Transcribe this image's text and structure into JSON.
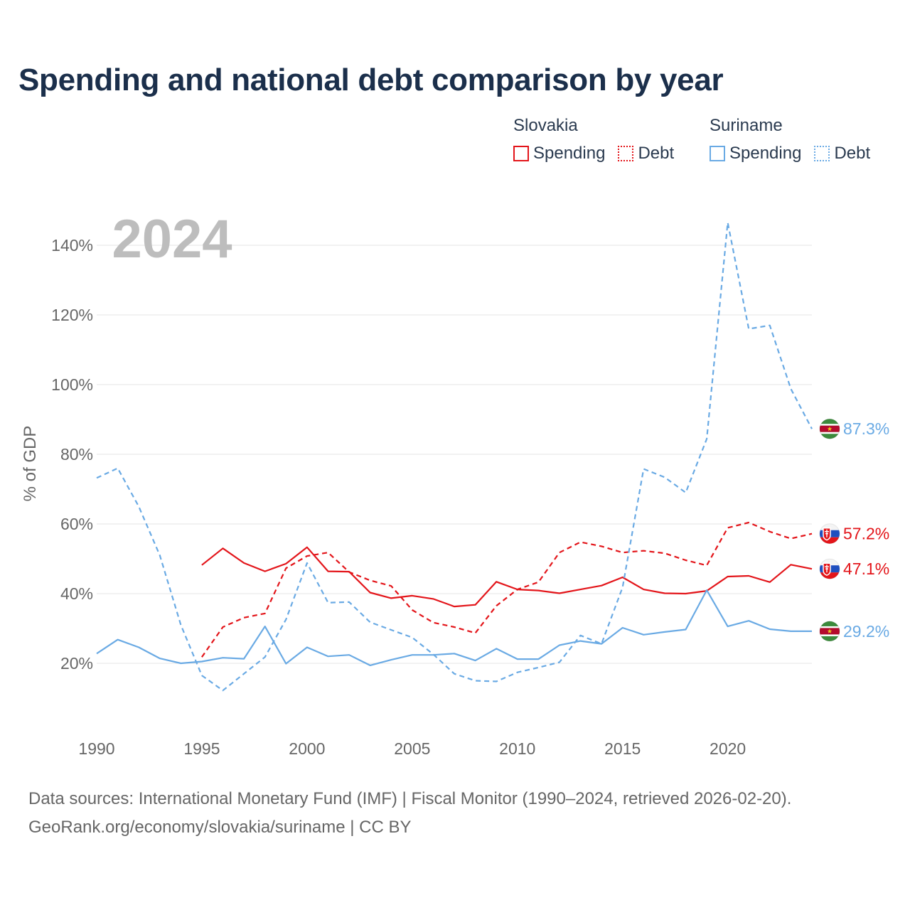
{
  "title": "Spending and national debt comparison by year",
  "legend": {
    "groups": [
      {
        "country": "Slovakia",
        "spending": "Spending",
        "debt": "Debt",
        "color": "#e3151a"
      },
      {
        "country": "Suriname",
        "spending": "Spending",
        "debt": "Debt",
        "color": "#6aaae4"
      }
    ]
  },
  "footer": {
    "sources": "Data sources: International Monetary Fund (IMF) | Fiscal Monitor (1990–2024, retrieved 2026-02-20).",
    "link": "GeoRank.org/economy/slovakia/suriname | CC BY"
  },
  "chart_data": {
    "type": "line",
    "year_label": "2024",
    "ylabel": "% of GDP",
    "xlim": [
      1990,
      2024
    ],
    "ylim": [
      0,
      150
    ],
    "x_ticks": [
      1990,
      1995,
      2000,
      2005,
      2010,
      2015,
      2020
    ],
    "y_ticks": [
      20,
      40,
      60,
      80,
      100,
      120,
      140
    ],
    "y_tick_labels": [
      "20%",
      "40%",
      "60%",
      "80%",
      "100%",
      "120%",
      "140%"
    ],
    "grid": true,
    "series": [
      {
        "name": "Slovakia Debt",
        "country": "Slovakia",
        "metric": "Debt",
        "style": "dashed",
        "color": "#e3151a",
        "flag": "slovakia",
        "end_label": "57.2%",
        "points": [
          [
            1995,
            21.8
          ],
          [
            1996,
            30.4
          ],
          [
            1997,
            33.1
          ],
          [
            1998,
            34.3
          ],
          [
            1999,
            47.3
          ],
          [
            2000,
            50.8
          ],
          [
            2001,
            51.8
          ],
          [
            2002,
            46.2
          ],
          [
            2003,
            43.8
          ],
          [
            2004,
            42.2
          ],
          [
            2005,
            35.3
          ],
          [
            2006,
            31.7
          ],
          [
            2007,
            30.4
          ],
          [
            2008,
            28.7
          ],
          [
            2009,
            36.5
          ],
          [
            2010,
            41.2
          ],
          [
            2011,
            43.3
          ],
          [
            2012,
            51.8
          ],
          [
            2013,
            54.8
          ],
          [
            2014,
            53.6
          ],
          [
            2015,
            51.8
          ],
          [
            2016,
            52.3
          ],
          [
            2017,
            51.6
          ],
          [
            2018,
            49.6
          ],
          [
            2019,
            48.1
          ],
          [
            2020,
            58.9
          ],
          [
            2021,
            60.4
          ],
          [
            2022,
            57.8
          ],
          [
            2023,
            55.8
          ],
          [
            2024,
            57.2
          ]
        ]
      },
      {
        "name": "Slovakia Spending",
        "country": "Slovakia",
        "metric": "Spending",
        "style": "solid",
        "color": "#e3151a",
        "flag": "slovakia",
        "end_label": "47.1%",
        "points": [
          [
            1995,
            48.2
          ],
          [
            1996,
            53.0
          ],
          [
            1997,
            48.8
          ],
          [
            1998,
            46.4
          ],
          [
            1999,
            48.6
          ],
          [
            2000,
            53.3
          ],
          [
            2001,
            46.4
          ],
          [
            2002,
            46.3
          ],
          [
            2003,
            40.3
          ],
          [
            2004,
            38.7
          ],
          [
            2005,
            39.4
          ],
          [
            2006,
            38.5
          ],
          [
            2007,
            36.3
          ],
          [
            2008,
            36.8
          ],
          [
            2009,
            43.4
          ],
          [
            2010,
            41.2
          ],
          [
            2011,
            40.9
          ],
          [
            2012,
            40.1
          ],
          [
            2013,
            41.2
          ],
          [
            2014,
            42.3
          ],
          [
            2015,
            44.7
          ],
          [
            2016,
            41.2
          ],
          [
            2017,
            40.1
          ],
          [
            2018,
            40.0
          ],
          [
            2019,
            40.8
          ],
          [
            2020,
            44.9
          ],
          [
            2021,
            45.1
          ],
          [
            2022,
            43.3
          ],
          [
            2023,
            48.3
          ],
          [
            2024,
            47.1
          ]
        ]
      },
      {
        "name": "Suriname Debt",
        "country": "Suriname",
        "metric": "Debt",
        "style": "dashed",
        "color": "#6aaae4",
        "flag": "suriname",
        "end_label": "87.3%",
        "points": [
          [
            1990,
            73.2
          ],
          [
            1991,
            76.0
          ],
          [
            1992,
            65.0
          ],
          [
            1993,
            51.0
          ],
          [
            1994,
            31.0
          ],
          [
            1995,
            16.5
          ],
          [
            1996,
            12.2
          ],
          [
            1997,
            17.0
          ],
          [
            1998,
            21.8
          ],
          [
            1999,
            32.6
          ],
          [
            2000,
            48.8
          ],
          [
            2001,
            37.4
          ],
          [
            2002,
            37.6
          ],
          [
            2003,
            31.8
          ],
          [
            2004,
            29.6
          ],
          [
            2005,
            27.4
          ],
          [
            2006,
            22.6
          ],
          [
            2007,
            17.0
          ],
          [
            2008,
            15.0
          ],
          [
            2009,
            14.8
          ],
          [
            2010,
            17.4
          ],
          [
            2011,
            18.8
          ],
          [
            2012,
            20.3
          ],
          [
            2013,
            28.0
          ],
          [
            2014,
            25.6
          ],
          [
            2015,
            41.8
          ],
          [
            2016,
            75.8
          ],
          [
            2017,
            73.4
          ],
          [
            2018,
            69.0
          ],
          [
            2019,
            84.4
          ],
          [
            2020,
            146.5
          ],
          [
            2021,
            116.0
          ],
          [
            2022,
            117.0
          ],
          [
            2023,
            98.8
          ],
          [
            2024,
            87.3
          ]
        ]
      },
      {
        "name": "Suriname Spending",
        "country": "Suriname",
        "metric": "Spending",
        "style": "solid",
        "color": "#6aaae4",
        "flag": "suriname",
        "end_label": "29.2%",
        "points": [
          [
            1990,
            22.8
          ],
          [
            1991,
            26.8
          ],
          [
            1992,
            24.6
          ],
          [
            1993,
            21.4
          ],
          [
            1994,
            20.0
          ],
          [
            1995,
            20.5
          ],
          [
            1996,
            21.6
          ],
          [
            1997,
            21.3
          ],
          [
            1998,
            30.6
          ],
          [
            1999,
            19.9
          ],
          [
            2000,
            24.6
          ],
          [
            2001,
            22.0
          ],
          [
            2002,
            22.4
          ],
          [
            2003,
            19.4
          ],
          [
            2004,
            21.0
          ],
          [
            2005,
            22.4
          ],
          [
            2006,
            22.4
          ],
          [
            2007,
            22.8
          ],
          [
            2008,
            20.8
          ],
          [
            2009,
            24.2
          ],
          [
            2010,
            21.2
          ],
          [
            2011,
            21.2
          ],
          [
            2012,
            25.2
          ],
          [
            2013,
            26.4
          ],
          [
            2014,
            25.6
          ],
          [
            2015,
            30.2
          ],
          [
            2016,
            28.2
          ],
          [
            2017,
            29.0
          ],
          [
            2018,
            29.7
          ],
          [
            2019,
            41.0
          ],
          [
            2020,
            30.6
          ],
          [
            2021,
            32.2
          ],
          [
            2022,
            29.8
          ],
          [
            2023,
            29.2
          ],
          [
            2024,
            29.2
          ]
        ]
      }
    ]
  }
}
